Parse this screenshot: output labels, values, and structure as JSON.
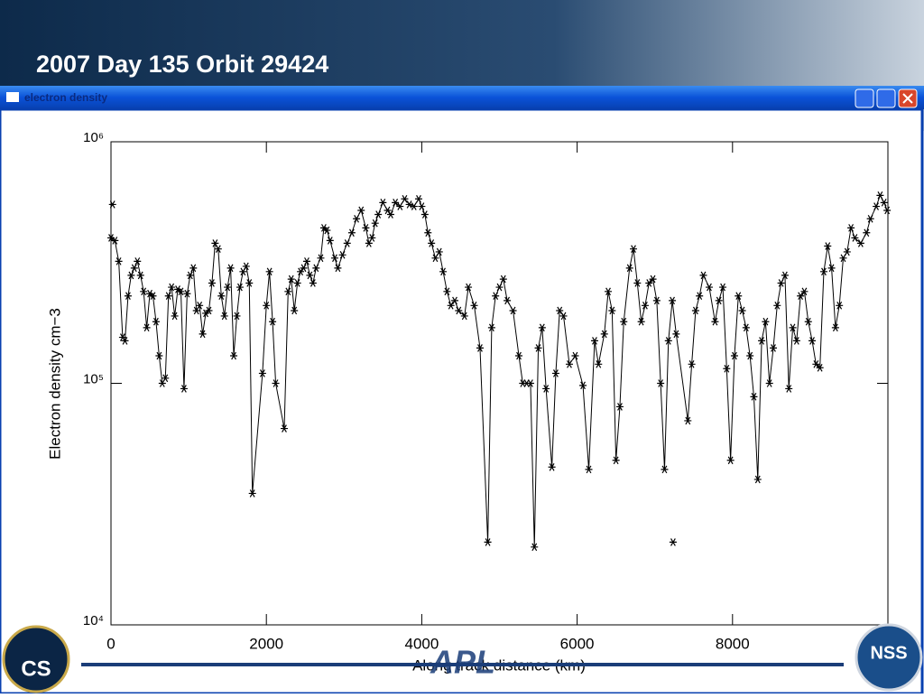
{
  "slide_title": "2007 Day 135 Orbit 29424",
  "window_title": "electron density",
  "logos": {
    "left": "CS",
    "center": "APL",
    "right": "NSS"
  },
  "chart_data": {
    "type": "line",
    "x_label": "Along track distance (km)",
    "y_label": "Electron density cm−3",
    "log_y": true,
    "color": "#000000",
    "marker": "asterisk",
    "xlim": [
      0,
      10000
    ],
    "ylim": [
      10000,
      1000000
    ],
    "xticks": [
      0,
      2000,
      4000,
      6000,
      8000
    ],
    "yticks": [
      {
        "value": 10000,
        "label": "10⁴"
      },
      {
        "value": 100000,
        "label": "10⁵"
      },
      {
        "value": 1000000,
        "label": "10⁶"
      }
    ],
    "x": [
      0,
      50,
      100,
      150,
      180,
      220,
      260,
      300,
      340,
      380,
      420,
      460,
      500,
      540,
      580,
      620,
      660,
      700,
      740,
      780,
      820,
      860,
      900,
      940,
      980,
      1020,
      1060,
      1100,
      1140,
      1180,
      1220,
      1260,
      1300,
      1340,
      1380,
      1420,
      1460,
      1500,
      1540,
      1580,
      1620,
      1660,
      1700,
      1740,
      1780,
      1820,
      1950,
      2000,
      2040,
      2080,
      2120,
      2230,
      2280,
      2320,
      2360,
      2400,
      2440,
      2480,
      2520,
      2560,
      2600,
      2640,
      2700,
      2740,
      2780,
      2820,
      2880,
      2920,
      2980,
      3040,
      3100,
      3160,
      3220,
      3280,
      3320,
      3360,
      3400,
      3440,
      3500,
      3560,
      3600,
      3660,
      3720,
      3780,
      3840,
      3900,
      3960,
      4000,
      4040,
      4080,
      4125,
      4175,
      4225,
      4275,
      4325,
      4375,
      4425,
      4475,
      4550,
      4600,
      4675,
      4750,
      4850,
      4900,
      4950,
      5000,
      5050,
      5100,
      5175,
      5250,
      5300,
      5350,
      5400,
      5450,
      5500,
      5550,
      5600,
      5675,
      5725,
      5775,
      5825,
      5900,
      5975,
      6075,
      6150,
      6225,
      6275,
      6350,
      6400,
      6450,
      6500,
      6550,
      6600,
      6675,
      6725,
      6775,
      6825,
      6875,
      6925,
      6975,
      7025,
      7075,
      7125,
      7175,
      7225,
      7275,
      7425,
      7475,
      7525,
      7575,
      7625,
      7700,
      7775,
      7825,
      7875,
      7925,
      7975,
      8025,
      8075,
      8125,
      8175,
      8225,
      8275,
      8325,
      8375,
      8425,
      8475,
      8525,
      8575,
      8625,
      8675,
      8725,
      8775,
      8825,
      8875,
      8925,
      8975,
      9025,
      9075,
      9125,
      9175,
      9225,
      9275,
      9325,
      9375,
      9425,
      9475,
      9525,
      9575,
      9650,
      9725,
      9775,
      9850,
      9900,
      9950,
      9990
    ],
    "values": [
      400000,
      390000,
      320000,
      155000,
      150000,
      230000,
      280000,
      300000,
      320000,
      280000,
      240000,
      170000,
      235000,
      230000,
      180000,
      130000,
      100000,
      105000,
      230000,
      250000,
      190000,
      245000,
      240000,
      95000,
      235000,
      280000,
      300000,
      200000,
      210000,
      160000,
      195000,
      200000,
      260000,
      380000,
      360000,
      230000,
      190000,
      250000,
      300000,
      130000,
      190000,
      250000,
      290000,
      305000,
      260000,
      35000,
      110000,
      210000,
      290000,
      180000,
      100000,
      65000,
      240000,
      270000,
      200000,
      260000,
      290000,
      300000,
      320000,
      280000,
      260000,
      300000,
      330000,
      440000,
      430000,
      390000,
      330000,
      300000,
      340000,
      380000,
      420000,
      480000,
      520000,
      440000,
      380000,
      400000,
      460000,
      500000,
      560000,
      520000,
      500000,
      560000,
      540000,
      580000,
      550000,
      540000,
      580000,
      540000,
      500000,
      420000,
      380000,
      330000,
      350000,
      290000,
      240000,
      210000,
      220000,
      200000,
      190000,
      250000,
      210000,
      140000,
      22000,
      170000,
      230000,
      250000,
      270000,
      220000,
      200000,
      130000,
      100000,
      100000,
      100000,
      21000,
      140000,
      170000,
      95000,
      45000,
      110000,
      200000,
      190000,
      120000,
      130000,
      98000,
      44000,
      150000,
      120000,
      160000,
      240000,
      200000,
      48000,
      80000,
      180000,
      300000,
      360000,
      260000,
      180000,
      210000,
      260000,
      270000,
      220000,
      100000,
      44000,
      150000,
      220000,
      160000,
      70000,
      120000,
      200000,
      230000,
      280000,
      250000,
      180000,
      220000,
      250000,
      115000,
      48000,
      130000,
      230000,
      200000,
      170000,
      130000,
      88000,
      40000,
      150000,
      180000,
      100000,
      140000,
      210000,
      260000,
      280000,
      95000,
      170000,
      150000,
      230000,
      240000,
      180000,
      150000,
      120000,
      116000,
      290000,
      370000,
      300000,
      170000,
      210000,
      330000,
      350000,
      440000,
      400000,
      380000,
      420000,
      480000,
      540000,
      600000,
      560000,
      520000
    ],
    "outliers": {
      "x": [
        20,
        7235
      ],
      "values": [
        550000,
        22000
      ]
    }
  }
}
